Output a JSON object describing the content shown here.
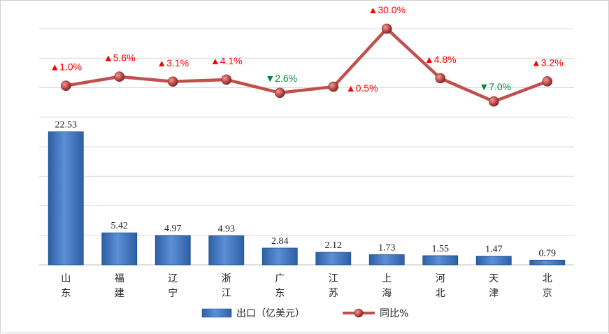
{
  "chart_data": {
    "type": "bar+line",
    "categories": [
      "山东",
      "福建",
      "辽宁",
      "浙江",
      "广东",
      "江苏",
      "上海",
      "河北",
      "天津",
      "北京"
    ],
    "series": [
      {
        "name": "出口（亿美元）",
        "type": "bar",
        "values": [
          22.53,
          5.42,
          4.97,
          4.93,
          2.84,
          2.12,
          1.73,
          1.55,
          1.47,
          0.79
        ],
        "labels": [
          "22.53",
          "5.42",
          "4.97",
          "4.93",
          "2.84",
          "2.12",
          "1.73",
          "1.55",
          "1.47",
          "0.79"
        ],
        "color": "#3f72b8"
      },
      {
        "name": "同比%",
        "type": "line",
        "values": [
          1.0,
          5.6,
          3.1,
          4.1,
          -2.6,
          0.5,
          30.0,
          4.8,
          -7.0,
          3.2
        ],
        "labels": [
          "1.0%",
          "5.6%",
          "3.1%",
          "4.1%",
          "2.6%",
          "0.5%",
          "30.0%",
          "4.8%",
          "7.0%",
          "3.2%"
        ],
        "color": "#c0504d"
      }
    ],
    "grid": true,
    "legend": "bottom",
    "up_color": "#ff0000",
    "down_color": "#00883a",
    "up_marker": "▲",
    "down_marker": "▼"
  }
}
